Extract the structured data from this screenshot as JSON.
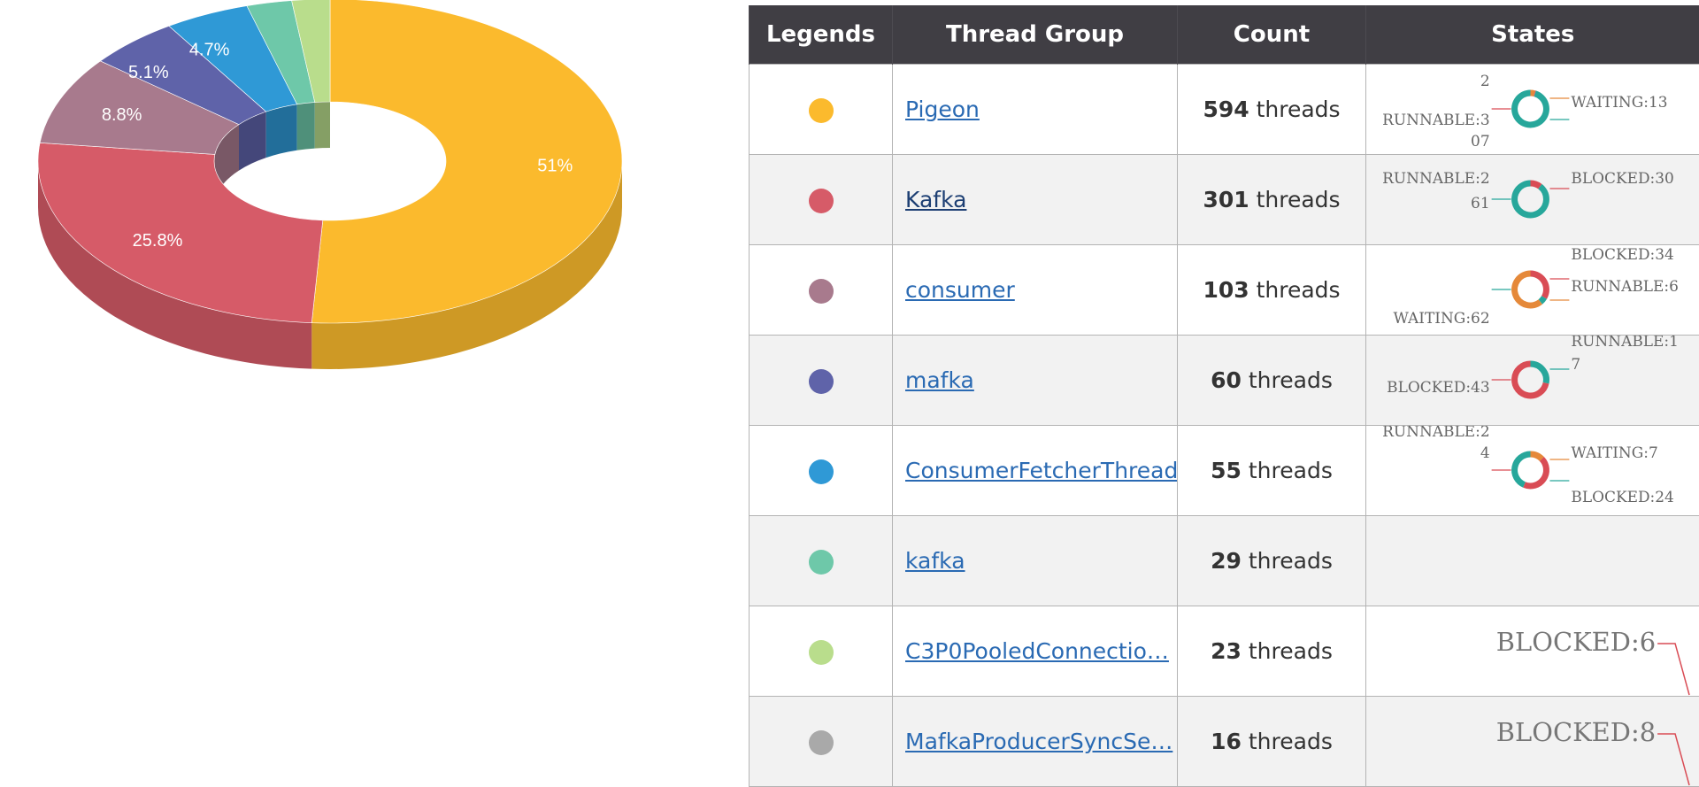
{
  "chart_data": [
    {
      "type": "pie",
      "variant": "3d-donut",
      "slices": [
        {
          "name": "Pigeon",
          "value": 51.0,
          "label": "51%",
          "color": "#fbba2d"
        },
        {
          "name": "Kafka",
          "value": 25.8,
          "label": "25.8%",
          "color": "#d65b68"
        },
        {
          "name": "consumer",
          "value": 8.8,
          "label": "8.8%",
          "color": "#a87a8d"
        },
        {
          "name": "mafka",
          "value": 5.1,
          "label": "5.1%",
          "color": "#5f63a9"
        },
        {
          "name": "ConsumerFetcherThread",
          "value": 4.7,
          "label": "4.7%",
          "color": "#2f99d6"
        },
        {
          "name": "kafka",
          "value": 2.5,
          "label": "",
          "color": "#6ec8a9"
        },
        {
          "name": "C3P0PooledConnectio…",
          "value": 2.1,
          "label": "",
          "color": "#b9dd8c"
        }
      ]
    },
    {
      "type": "table",
      "headers": [
        "Legends",
        "Thread Group",
        "Count",
        "States"
      ],
      "count_suffix": "threads",
      "rows": [
        {
          "color": "#fbba2d",
          "group": "Pigeon",
          "count": 594,
          "visited": false,
          "states": {
            "type": "donut",
            "segments": [
              {
                "state": "WAITING",
                "value": 13,
                "color": "#e5893a"
              },
              {
                "state": "BLOCKED",
                "value": 2,
                "color": "#d94c55"
              },
              {
                "state": "RUNNABLE",
                "value": 307,
                "color": "#27a79b"
              }
            ],
            "labels": [
              {
                "text": "2",
                "side": "left",
                "dy": -0.8
              },
              {
                "text": "WAITING:13",
                "side": "right",
                "dy": -0.2
              },
              {
                "text": "RUNNABLE:3",
                "side": "left",
                "dy": 0.3
              },
              {
                "text": "07",
                "side": "left",
                "dy": 0.9
              }
            ]
          }
        },
        {
          "color": "#d65b68",
          "group": "Kafka",
          "count": 301,
          "visited": true,
          "states": {
            "type": "donut",
            "segments": [
              {
                "state": "BLOCKED",
                "value": 30,
                "color": "#d94c55"
              },
              {
                "state": "RUNNABLE",
                "value": 261,
                "color": "#27a79b"
              }
            ],
            "labels": [
              {
                "text": "RUNNABLE:2",
                "side": "left",
                "dy": -0.6
              },
              {
                "text": "BLOCKED:30",
                "side": "right",
                "dy": -0.6
              },
              {
                "text": "61",
                "side": "left",
                "dy": 0.1
              }
            ]
          }
        },
        {
          "color": "#a87a8d",
          "group": "consumer",
          "count": 103,
          "visited": false,
          "states": {
            "type": "donut",
            "segments": [
              {
                "state": "BLOCKED",
                "value": 34,
                "color": "#d94c55"
              },
              {
                "state": "RUNNABLE",
                "value": 6,
                "color": "#27a79b"
              },
              {
                "state": "WAITING",
                "value": 62,
                "color": "#e5893a"
              }
            ],
            "labels": [
              {
                "text": "BLOCKED:34",
                "side": "right",
                "dy": -1.0
              },
              {
                "text": "RUNNABLE:6",
                "side": "right",
                "dy": -0.1
              },
              {
                "text": "WAITING:62",
                "side": "left",
                "dy": 0.8
              }
            ]
          }
        },
        {
          "color": "#5f63a9",
          "group": "mafka",
          "count": 60,
          "visited": false,
          "states": {
            "type": "donut",
            "segments": [
              {
                "state": "RUNNABLE",
                "value": 17,
                "color": "#27a79b"
              },
              {
                "state": "BLOCKED",
                "value": 43,
                "color": "#d94c55"
              }
            ],
            "labels": [
              {
                "text": "RUNNABLE:1",
                "side": "right",
                "dy": -1.1
              },
              {
                "text": "7",
                "side": "right",
                "dy": -0.45
              },
              {
                "text": "BLOCKED:43",
                "side": "left",
                "dy": 0.2
              }
            ]
          }
        },
        {
          "color": "#2f99d6",
          "group": "ConsumerFetcherThread",
          "count": 55,
          "visited": false,
          "states": {
            "type": "donut",
            "segments": [
              {
                "state": "WAITING",
                "value": 7,
                "color": "#e5893a"
              },
              {
                "state": "BLOCKED",
                "value": 24,
                "color": "#d94c55"
              },
              {
                "state": "RUNNABLE",
                "value": 24,
                "color": "#27a79b"
              }
            ],
            "labels": [
              {
                "text": "RUNNABLE:2",
                "side": "left",
                "dy": -1.1
              },
              {
                "text": "4",
                "side": "left",
                "dy": -0.5
              },
              {
                "text": "WAITING:7",
                "side": "right",
                "dy": -0.5
              },
              {
                "text": "BLOCKED:24",
                "side": "right",
                "dy": 0.75
              }
            ]
          }
        },
        {
          "color": "#6ec8a9",
          "group": "kafka",
          "count": 29,
          "visited": false,
          "states": {
            "type": "none"
          }
        },
        {
          "color": "#b9dd8c",
          "group": "C3P0PooledConnectio…",
          "count": 23,
          "visited": false,
          "states": {
            "type": "callout",
            "text": "BLOCKED:6",
            "color": "#d94c55"
          }
        },
        {
          "color": "#a9a9a9",
          "group": "MafkaProducerSyncSe…",
          "count": 16,
          "visited": false,
          "states": {
            "type": "callout",
            "text": "BLOCKED:8",
            "color": "#d94c55"
          }
        }
      ]
    }
  ]
}
